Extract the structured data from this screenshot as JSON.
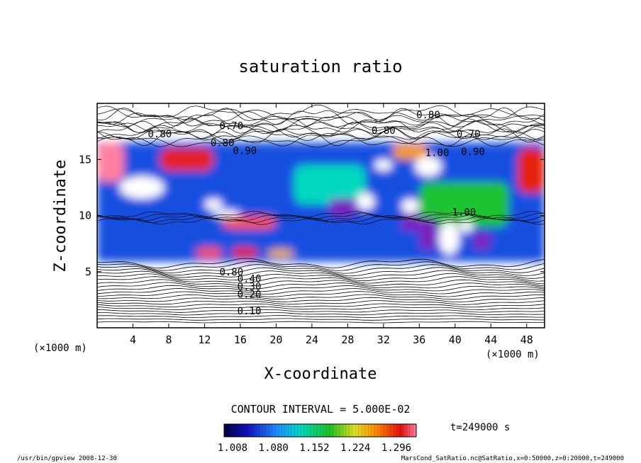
{
  "chart_data": {
    "type": "heatmap",
    "title": "saturation ratio",
    "xlabel": "X-coordinate",
    "ylabel": "Z-coordinate",
    "x_unit": "(×1000 m)",
    "x_unit_right": "(×1000 m)",
    "xlim": [
      0,
      50
    ],
    "ylim": [
      0,
      20
    ],
    "xticks": [
      4,
      8,
      12,
      16,
      20,
      24,
      28,
      32,
      36,
      40,
      44,
      48
    ],
    "yticks": [
      5,
      10,
      15
    ],
    "contour_interval": "CONTOUR INTERVAL = 5.000E-02",
    "colorbar_ticks": [
      "1.008",
      "1.080",
      "1.152",
      "1.224",
      "1.296"
    ],
    "colorbar_range": [
      1.0,
      1.3
    ],
    "time_label": "t=249000 s",
    "contour_labels": [
      {
        "text": "0.10",
        "x": 17.0,
        "y": 1.5
      },
      {
        "text": "0.20",
        "x": 17.0,
        "y": 3.0
      },
      {
        "text": "0.30",
        "x": 17.0,
        "y": 3.7
      },
      {
        "text": "0.40",
        "x": 17.0,
        "y": 4.4
      },
      {
        "text": "0.80",
        "x": 15.0,
        "y": 5.0
      },
      {
        "text": "0.80",
        "x": 7.0,
        "y": 17.3
      },
      {
        "text": "0.70",
        "x": 15.0,
        "y": 18.0
      },
      {
        "text": "0.80",
        "x": 14.0,
        "y": 16.5
      },
      {
        "text": "0.90",
        "x": 16.5,
        "y": 15.8
      },
      {
        "text": "0.80",
        "x": 32.0,
        "y": 17.6
      },
      {
        "text": "0.80",
        "x": 37.0,
        "y": 19.0
      },
      {
        "text": "0.70",
        "x": 41.5,
        "y": 17.3
      },
      {
        "text": "0.90",
        "x": 42.0,
        "y": 15.7
      },
      {
        "text": "1.00",
        "x": 38.0,
        "y": 15.6
      },
      {
        "text": "1.00",
        "x": 41.0,
        "y": 10.3
      }
    ],
    "regions": [
      {
        "x": [
          0,
          50
        ],
        "y": [
          5.9,
          16.5
        ],
        "value": 1.06
      },
      {
        "x": [
          0,
          3
        ],
        "y": [
          13,
          16.5
        ],
        "value": 1.3
      },
      {
        "x": [
          7,
          13
        ],
        "y": [
          14,
          16
        ],
        "value": 1.28
      },
      {
        "x": [
          14,
          20
        ],
        "y": [
          8.8,
          10
        ],
        "value": 1.29
      },
      {
        "x": [
          11,
          14
        ],
        "y": [
          6.2,
          7.2
        ],
        "value": 1.29
      },
      {
        "x": [
          15,
          18
        ],
        "y": [
          6.3,
          7.2
        ],
        "value": 1.28
      },
      {
        "x": [
          19,
          22
        ],
        "y": [
          6.3,
          7
        ],
        "value": 1.22
      },
      {
        "x": [
          47,
          50
        ],
        "y": [
          12,
          16
        ],
        "value": 1.27
      },
      {
        "x": [
          33,
          37
        ],
        "y": [
          15,
          16.3
        ],
        "value": 1.23
      },
      {
        "x": [
          22,
          30
        ],
        "y": [
          11,
          14.5
        ],
        "value": 1.12
      },
      {
        "x": [
          36,
          46
        ],
        "y": [
          9,
          13
        ],
        "value": 1.16
      }
    ],
    "holes": [
      {
        "x": [
          2.5,
          7.5
        ],
        "y": [
          11.5,
          13.5
        ]
      },
      {
        "x": [
          12,
          14
        ],
        "y": [
          10.5,
          11.5
        ]
      },
      {
        "x": [
          13,
          16
        ],
        "y": [
          9.8,
          10.5
        ]
      },
      {
        "x": [
          29,
          31
        ],
        "y": [
          10.5,
          12
        ]
      },
      {
        "x": [
          35.5,
          38.5
        ],
        "y": [
          13.5,
          15.3
        ]
      },
      {
        "x": [
          38.2,
          40.5
        ],
        "y": [
          6.5,
          9.5
        ]
      },
      {
        "x": [
          34,
          36
        ],
        "y": [
          10.2,
          11.5
        ]
      },
      {
        "x": [
          31,
          33
        ],
        "y": [
          14,
          15
        ]
      },
      {
        "x": [
          40.5,
          42
        ],
        "y": [
          8.5,
          9.6
        ]
      }
    ],
    "violet": [
      {
        "x": [
          36,
          38
        ],
        "y": [
          7,
          9.8
        ]
      },
      {
        "x": [
          34,
          36
        ],
        "y": [
          8.6,
          10.2
        ]
      },
      {
        "x": [
          26,
          29
        ],
        "y": [
          10,
          11.5
        ]
      },
      {
        "x": [
          42,
          44
        ],
        "y": [
          7,
          8.5
        ]
      }
    ]
  },
  "footer": {
    "left": "/usr/bin/gpview  2008-12-30",
    "right": "MarsCond_SatRatio.nc@SatRatio,x=0:50000,z=0:20000,t=249000"
  }
}
